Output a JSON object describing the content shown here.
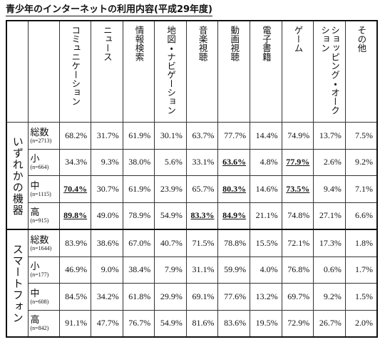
{
  "title": "青少年のインターネットの利用内容(平成29年度)",
  "table": {
    "columns": [
      "コミュニケーション",
      "ニュース",
      "情報検索",
      "地図・ナビゲーション",
      "音楽視聴",
      "動画視聴",
      "電子書籍",
      "ゲーム",
      "ショッピング・オークション",
      "その他"
    ],
    "groups": [
      {
        "name": "いずれかの機器",
        "rows": [
          {
            "label": "総数",
            "n": "(n=2713)",
            "cells": [
              "68.2%",
              "31.7%",
              "61.9%",
              "30.1%",
              "63.7%",
              "77.7%",
              "14.4%",
              "74.9%",
              "13.7%",
              "7.5%"
            ],
            "bold": []
          },
          {
            "label": "小",
            "n": "(n=664)",
            "cells": [
              "34.3%",
              "9.3%",
              "38.0%",
              "5.6%",
              "33.1%",
              "63.6%",
              "4.8%",
              "77.9%",
              "2.6%",
              "9.2%"
            ],
            "bold": [
              5,
              7
            ]
          },
          {
            "label": "中",
            "n": "(n=1115)",
            "cells": [
              "70.4%",
              "30.7%",
              "61.9%",
              "23.9%",
              "65.7%",
              "80.3%",
              "14.6%",
              "73.5%",
              "9.4%",
              "7.1%"
            ],
            "bold": [
              0,
              5,
              7
            ]
          },
          {
            "label": "高",
            "n": "(n=915)",
            "cells": [
              "89.8%",
              "49.0%",
              "78.9%",
              "54.9%",
              "83.3%",
              "84.9%",
              "21.1%",
              "74.8%",
              "27.1%",
              "6.6%"
            ],
            "bold": [
              0,
              4,
              5
            ]
          }
        ]
      },
      {
        "name": "スマートフォン",
        "rows": [
          {
            "label": "総数",
            "n": "(n=1644)",
            "cells": [
              "83.9%",
              "38.6%",
              "67.0%",
              "40.7%",
              "71.5%",
              "78.8%",
              "15.5%",
              "72.1%",
              "17.3%",
              "1.8%"
            ],
            "bold": []
          },
          {
            "label": "小",
            "n": "(n=177)",
            "cells": [
              "46.9%",
              "9.0%",
              "38.4%",
              "7.9%",
              "31.1%",
              "59.9%",
              "4.0%",
              "76.8%",
              "0.6%",
              "1.7%"
            ],
            "bold": []
          },
          {
            "label": "中",
            "n": "(n=608)",
            "cells": [
              "84.5%",
              "34.2%",
              "61.8%",
              "29.9%",
              "69.1%",
              "77.6%",
              "13.2%",
              "69.7%",
              "9.2%",
              "1.5%"
            ],
            "bold": []
          },
          {
            "label": "高",
            "n": "(n=842)",
            "cells": [
              "91.1%",
              "47.7%",
              "76.7%",
              "54.9%",
              "81.6%",
              "83.6%",
              "19.5%",
              "72.9%",
              "26.7%",
              "2.0%"
            ],
            "bold": []
          }
        ]
      }
    ]
  }
}
